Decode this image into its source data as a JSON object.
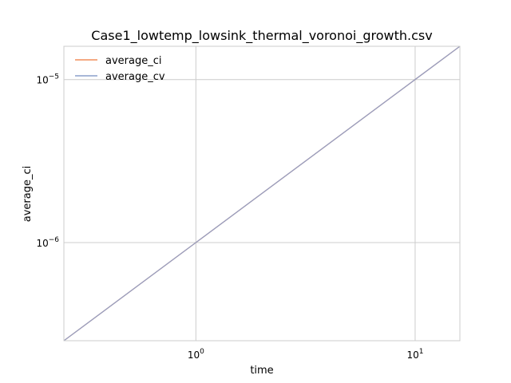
{
  "chart_data": {
    "type": "line",
    "title": "Case1_lowtemp_lowsink_thermal_voronoi_growth.csv",
    "xlabel": "time",
    "ylabel": "average_ci",
    "x_scale": "log",
    "y_scale": "log",
    "xlim": [
      0.25,
      16
    ],
    "ylim": [
      2.5e-07,
      1.6e-05
    ],
    "x_ticks": [
      {
        "value": 1,
        "base": "10",
        "exp": "0"
      },
      {
        "value": 10,
        "base": "10",
        "exp": "1"
      }
    ],
    "y_ticks": [
      {
        "value": 1e-06,
        "base": "10",
        "exp": "−6"
      },
      {
        "value": 1e-05,
        "base": "10",
        "exp": "−5"
      }
    ],
    "grid": true,
    "legend_position": "top-left",
    "series": [
      {
        "name": "average_ci",
        "color": "#f28e5b",
        "x": [
          0.25,
          1,
          10,
          16
        ],
        "y": [
          2.5e-07,
          1e-06,
          1e-05,
          1.6e-05
        ]
      },
      {
        "name": "average_cv",
        "color": "#8c9fcb",
        "x": [
          0.25,
          1,
          10,
          16
        ],
        "y": [
          2.5e-07,
          1e-06,
          1e-05,
          1.6e-05
        ]
      }
    ]
  }
}
